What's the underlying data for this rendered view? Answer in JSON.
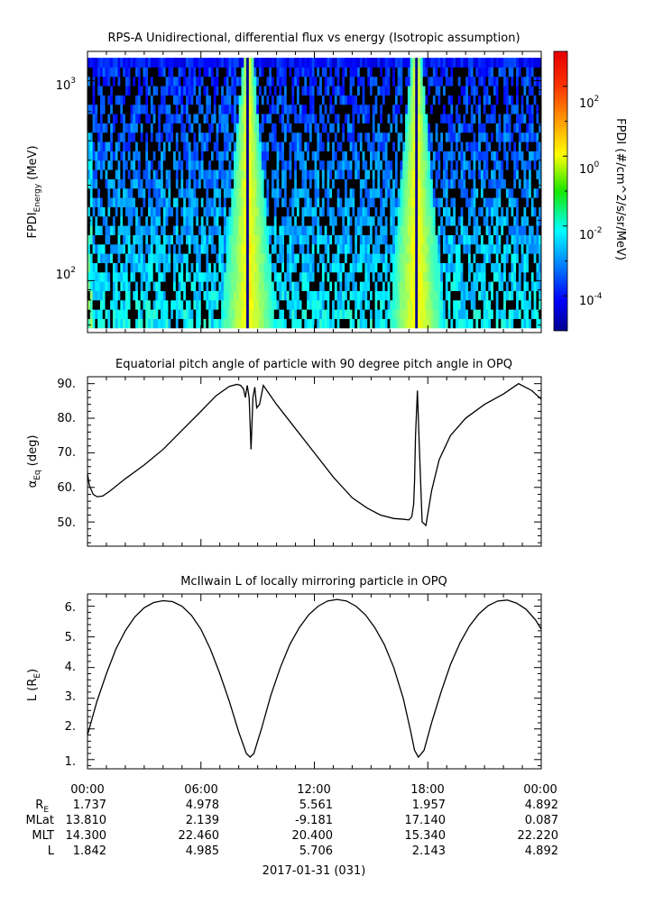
{
  "panel1": {
    "title": "RPS-A Unidirectional, differential flux vs energy (Isotropic assumption)",
    "ylabel_main": "FPDI",
    "ylabel_sub": "Energy",
    "ylabel_unit": " (MeV)",
    "yticks": [
      {
        "base": "10",
        "exp": "3",
        "value": 1000
      },
      {
        "base": "10",
        "exp": "2",
        "value": 100
      }
    ],
    "colorbar_label": "FPDI (#/cm^2/s/sr/MeV)",
    "colorbar_ticks": [
      {
        "base": "10",
        "exp": "2",
        "value": 2
      },
      {
        "base": "10",
        "exp": "0",
        "value": 0
      },
      {
        "base": "10",
        "exp": "-2",
        "value": -2
      },
      {
        "base": "10",
        "exp": "-4",
        "value": -4
      }
    ]
  },
  "panel2": {
    "title": "Equatorial pitch angle of particle with 90 degree pitch angle in OPQ",
    "ylabel_alpha": "α",
    "ylabel_sub": "Eq",
    "ylabel_unit": " (deg)",
    "yticks": [
      "90.",
      "80.",
      "70.",
      "60.",
      "50."
    ]
  },
  "panel3": {
    "title": "McIlwain L of locally mirroring particle in OPQ",
    "ylabel_main": "L (R",
    "ylabel_sub": "E",
    "ylabel_close": ")",
    "yticks": [
      "6.",
      "5.",
      "4.",
      "3.",
      "2.",
      "1."
    ]
  },
  "xaxis": {
    "ticks": [
      "00:00",
      "06:00",
      "12:00",
      "18:00",
      "00:00"
    ],
    "date_label": "2017-01-31 (031)"
  },
  "ephemeris": {
    "rows": [
      {
        "label": "R",
        "label_sub": "E",
        "values": [
          "1.737",
          "4.978",
          "5.561",
          "1.957",
          "4.892"
        ]
      },
      {
        "label": "MLat",
        "label_sub": "",
        "values": [
          "13.810",
          "2.139",
          "-9.181",
          "17.140",
          "0.087"
        ]
      },
      {
        "label": "MLT",
        "label_sub": "",
        "values": [
          "14.300",
          "22.460",
          "20.400",
          "15.340",
          "22.220"
        ]
      },
      {
        "label": "L",
        "label_sub": "",
        "values": [
          "1.842",
          "4.985",
          "5.706",
          "2.143",
          "4.892"
        ]
      }
    ]
  },
  "chart_data": [
    {
      "type": "heatmap",
      "title": "RPS-A Unidirectional, differential flux vs energy (Isotropic assumption)",
      "ylabel": "FPDI_Energy (MeV)",
      "y_scale": "log",
      "ylim": [
        55,
        1400
      ],
      "x_range": [
        "2017-01-31 00:00",
        "2017-02-01 00:00"
      ],
      "colorbar": {
        "label": "FPDI (#/cm^2/s/sr/MeV)",
        "scale": "log",
        "range_exp": [
          -5,
          3
        ],
        "colormap": "jet"
      },
      "energy_channels_MeV": [
        58,
        64,
        71,
        79,
        88,
        98,
        109,
        121,
        135,
        150,
        167,
        186,
        207,
        231,
        257,
        286,
        318,
        354,
        394,
        439,
        489,
        544,
        606,
        675,
        751,
        836,
        931,
        1036,
        1154,
        1300
      ],
      "enhancement_times_hours": [
        8.5,
        17.4
      ]
    },
    {
      "type": "line",
      "title": "Equatorial pitch angle of particle with 90 degree pitch angle in OPQ",
      "ylabel": "α_Eq (deg)",
      "ylim": [
        43,
        92
      ],
      "x_hours": [
        0,
        0.1,
        0.3,
        0.5,
        0.8,
        1.2,
        2,
        3,
        4,
        5,
        6,
        6.8,
        7.5,
        7.9,
        8.1,
        8.25,
        8.35,
        8.45,
        8.55,
        8.65,
        8.75,
        8.85,
        8.95,
        9.1,
        9.3,
        10,
        11,
        12,
        13,
        14,
        14.8,
        15.5,
        16.2,
        16.7,
        17.0,
        17.15,
        17.25,
        17.3,
        17.35,
        17.45,
        17.55,
        17.7,
        17.9,
        18.2,
        18.6,
        19.2,
        20,
        21,
        22,
        22.8,
        23.5,
        24
      ],
      "y_deg": [
        64,
        60.5,
        58,
        57.3,
        57.5,
        59,
        62.5,
        66.5,
        71,
        76.5,
        82,
        86.5,
        89.2,
        89.8,
        89.5,
        88.5,
        86,
        89.5,
        86,
        71,
        86,
        89,
        83,
        84,
        89.5,
        84,
        77,
        70,
        63,
        57,
        54,
        52,
        51,
        50.8,
        50.6,
        51.5,
        55,
        62,
        75,
        88,
        72,
        50,
        49,
        59,
        68,
        75,
        80,
        84,
        87,
        90,
        88,
        85.5
      ]
    },
    {
      "type": "line",
      "title": "McIlwain L of locally mirroring particle in OPQ",
      "ylabel": "L (R_E)",
      "ylim": [
        0.7,
        6.4
      ],
      "x_hours": [
        0,
        0.5,
        1,
        1.5,
        2,
        2.5,
        3,
        3.5,
        4,
        4.5,
        5,
        5.5,
        6,
        6.5,
        7,
        7.5,
        8,
        8.4,
        8.6,
        8.8,
        9.2,
        9.7,
        10.2,
        10.7,
        11.2,
        11.7,
        12.2,
        12.7,
        13.2,
        13.7,
        14.2,
        14.7,
        15.2,
        15.7,
        16.2,
        16.7,
        17.1,
        17.3,
        17.5,
        17.8,
        18.2,
        18.7,
        19.2,
        19.7,
        20.2,
        20.7,
        21.2,
        21.7,
        22.2,
        22.7,
        23.2,
        23.7,
        24
      ],
      "y_RE": [
        1.8,
        2.9,
        3.8,
        4.6,
        5.2,
        5.65,
        5.95,
        6.12,
        6.18,
        6.15,
        6.0,
        5.7,
        5.25,
        4.6,
        3.8,
        2.9,
        1.9,
        1.2,
        1.08,
        1.2,
        2.0,
        3.1,
        4.0,
        4.75,
        5.3,
        5.72,
        6.0,
        6.17,
        6.22,
        6.17,
        6.0,
        5.72,
        5.3,
        4.75,
        4.0,
        3.0,
        1.9,
        1.3,
        1.08,
        1.3,
        2.2,
        3.2,
        4.1,
        4.8,
        5.35,
        5.75,
        6.02,
        6.17,
        6.2,
        6.1,
        5.9,
        5.55,
        5.25
      ]
    }
  ]
}
